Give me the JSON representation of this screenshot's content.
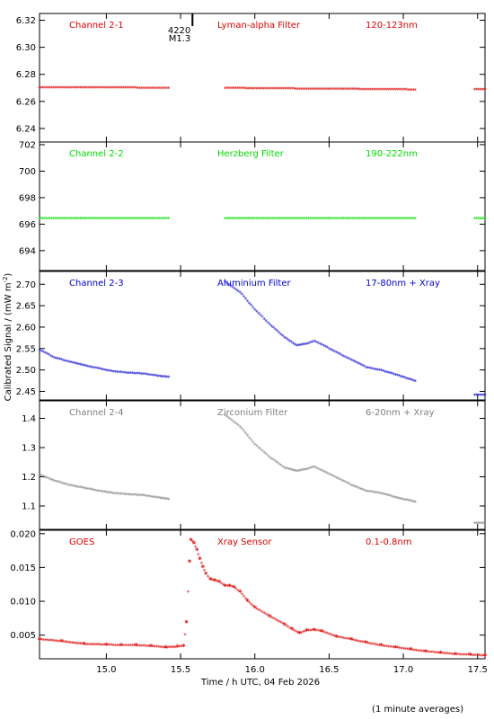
{
  "chart_data": {
    "type": "scatter",
    "xlabel": "Time / h UTC, 04 Feb 2026",
    "ylabel": "Calibrated Signal / (mW m",
    "ylabel_sup": "-2",
    "ylabel_close": ")",
    "note": "(1 minute averages)",
    "xlim": [
      14.55,
      17.55
    ],
    "xticks": [
      {
        "value": 15.0,
        "label": "15.0"
      },
      {
        "value": 15.5,
        "label": "15.5"
      },
      {
        "value": 16.0,
        "label": "16.0"
      },
      {
        "value": 16.5,
        "label": "16.5"
      },
      {
        "value": 17.0,
        "label": "17.0"
      },
      {
        "value": 17.5,
        "label": "17.5"
      }
    ],
    "flare_marker": {
      "x": 15.58,
      "label_top": "4220",
      "label_bottom": "M1.3"
    },
    "panels": [
      {
        "channel": "Channel 2-1",
        "filter": "Lyman-alpha Filter",
        "band": "120-123nm",
        "color": "#dd0000",
        "ylim": [
          6.23,
          6.325
        ],
        "yticks": [
          6.24,
          6.26,
          6.28,
          6.3,
          6.32
        ],
        "yticklabels": [
          "6.24",
          "6.26",
          "6.28",
          "6.30",
          "6.32"
        ],
        "series": [
          {
            "x": [
              14.55,
              14.8,
              15.0,
              15.2,
              15.42
            ],
            "y": [
              6.27,
              6.27,
              6.2698,
              6.2697,
              6.2695
            ]
          },
          {
            "x": [
              15.8,
              16.0,
              16.3,
              16.6,
              16.9,
              17.08
            ],
            "y": [
              6.2695,
              6.2693,
              6.269,
              6.2688,
              6.2685,
              6.2683
            ]
          },
          {
            "x": [
              17.48,
              17.55
            ],
            "y": [
              6.2685,
              6.2685
            ]
          }
        ]
      },
      {
        "channel": "Channel 2-2",
        "filter": "Herzberg Filter",
        "band": "190-222nm",
        "color": "#00dd00",
        "ylim": [
          692.5,
          702.2
        ],
        "yticks": [
          694,
          696,
          698,
          700,
          702
        ],
        "yticklabels": [
          "694",
          "696",
          "698",
          "700",
          "702"
        ],
        "series": [
          {
            "x": [
              14.55,
              14.8,
              15.0,
              15.2,
              15.42
            ],
            "y": [
              696.4,
              696.4,
              696.4,
              696.4,
              696.4
            ]
          },
          {
            "x": [
              15.8,
              16.0,
              16.3,
              16.6,
              16.9,
              17.08
            ],
            "y": [
              696.4,
              696.4,
              696.4,
              696.4,
              696.4,
              696.4
            ]
          },
          {
            "x": [
              17.48,
              17.55
            ],
            "y": [
              696.4,
              696.4
            ]
          }
        ]
      },
      {
        "channel": "Channel 2-3",
        "filter": "Aluminium Filter",
        "band": "17-80nm + Xray",
        "color": "#0000cc",
        "ylim": [
          2.43,
          2.73
        ],
        "yticks": [
          2.45,
          2.5,
          2.55,
          2.6,
          2.65,
          2.7
        ],
        "yticklabels": [
          "2.45",
          "2.50",
          "2.55",
          "2.60",
          "2.65",
          "2.70"
        ],
        "series": [
          {
            "x": [
              14.55,
              14.65,
              14.75,
              14.85,
              14.95,
              15.05,
              15.15,
              15.25,
              15.35,
              15.42
            ],
            "y": [
              2.545,
              2.528,
              2.518,
              2.51,
              2.502,
              2.495,
              2.492,
              2.49,
              2.485,
              2.482
            ]
          },
          {
            "x": [
              15.8,
              15.9,
              16.0,
              16.1,
              16.2,
              16.28,
              16.35,
              16.4,
              16.45,
              16.55,
              16.65,
              16.75,
              16.85,
              16.95,
              17.08
            ],
            "y": [
              2.705,
              2.68,
              2.64,
              2.605,
              2.575,
              2.556,
              2.56,
              2.566,
              2.558,
              2.54,
              2.522,
              2.505,
              2.498,
              2.488,
              2.473
            ]
          },
          {
            "x": [
              17.48,
              17.55
            ],
            "y": [
              2.44,
              2.44
            ]
          }
        ]
      },
      {
        "channel": "Channel 2-4",
        "filter": "Zirconium Filter",
        "band": "6-20nm + Xray",
        "color": "#808080",
        "ylim": [
          1.02,
          1.46
        ],
        "yticks": [
          1.1,
          1.2,
          1.3,
          1.4
        ],
        "yticklabels": [
          "1.1",
          "1.2",
          "1.3",
          "1.4"
        ],
        "series": [
          {
            "x": [
              14.55,
              14.65,
              14.75,
              14.85,
              14.95,
              15.05,
              15.15,
              15.25,
              15.35,
              15.42
            ],
            "y": [
              1.205,
              1.185,
              1.17,
              1.16,
              1.15,
              1.142,
              1.138,
              1.135,
              1.127,
              1.122
            ]
          },
          {
            "x": [
              15.8,
              15.9,
              16.0,
              16.1,
              16.2,
              16.28,
              16.35,
              16.4,
              16.45,
              16.55,
              16.65,
              16.75,
              16.85,
              16.95,
              17.08
            ],
            "y": [
              1.41,
              1.37,
              1.31,
              1.265,
              1.23,
              1.218,
              1.225,
              1.232,
              1.22,
              1.195,
              1.17,
              1.15,
              1.142,
              1.128,
              1.112
            ]
          },
          {
            "x": [
              17.48,
              17.55
            ],
            "y": [
              1.04,
              1.04
            ]
          }
        ]
      },
      {
        "channel": "GOES",
        "filter": "Xray Sensor",
        "band": "0.1-0.8nm",
        "color": "#dd0000",
        "ylim": [
          0.0015,
          0.0205
        ],
        "yticks": [
          0.005,
          0.01,
          0.015,
          0.02
        ],
        "yticklabels": [
          "0.005",
          "0.010",
          "0.015",
          "0.020"
        ],
        "series": [
          {
            "x": [
              14.55,
              14.7,
              14.85,
              15.0,
              15.1,
              15.2,
              15.3,
              15.4,
              15.48,
              15.52,
              15.54,
              15.56,
              15.57,
              15.59,
              15.61,
              15.63,
              15.65,
              15.67,
              15.7,
              15.73,
              15.76,
              15.8,
              15.83,
              15.86,
              15.9,
              15.95,
              16.0,
              16.1,
              16.2,
              16.25,
              16.3,
              16.35,
              16.4,
              16.45,
              16.55,
              16.65,
              16.75,
              16.85,
              16.95,
              17.05,
              17.15,
              17.25,
              17.35,
              17.45,
              17.55
            ],
            "y": [
              0.0043,
              0.004,
              0.0036,
              0.0035,
              0.0034,
              0.0034,
              0.0033,
              0.0031,
              0.0032,
              0.0033,
              0.0068,
              0.0158,
              0.019,
              0.0185,
              0.0175,
              0.0162,
              0.015,
              0.014,
              0.0132,
              0.013,
              0.0128,
              0.0122,
              0.0122,
              0.012,
              0.0113,
              0.01,
              0.009,
              0.0077,
              0.0065,
              0.0058,
              0.0052,
              0.0056,
              0.0057,
              0.0055,
              0.0047,
              0.0043,
              0.0038,
              0.0034,
              0.0031,
              0.0028,
              0.0025,
              0.0023,
              0.0021,
              0.002,
              0.0019
            ]
          }
        ]
      }
    ]
  }
}
